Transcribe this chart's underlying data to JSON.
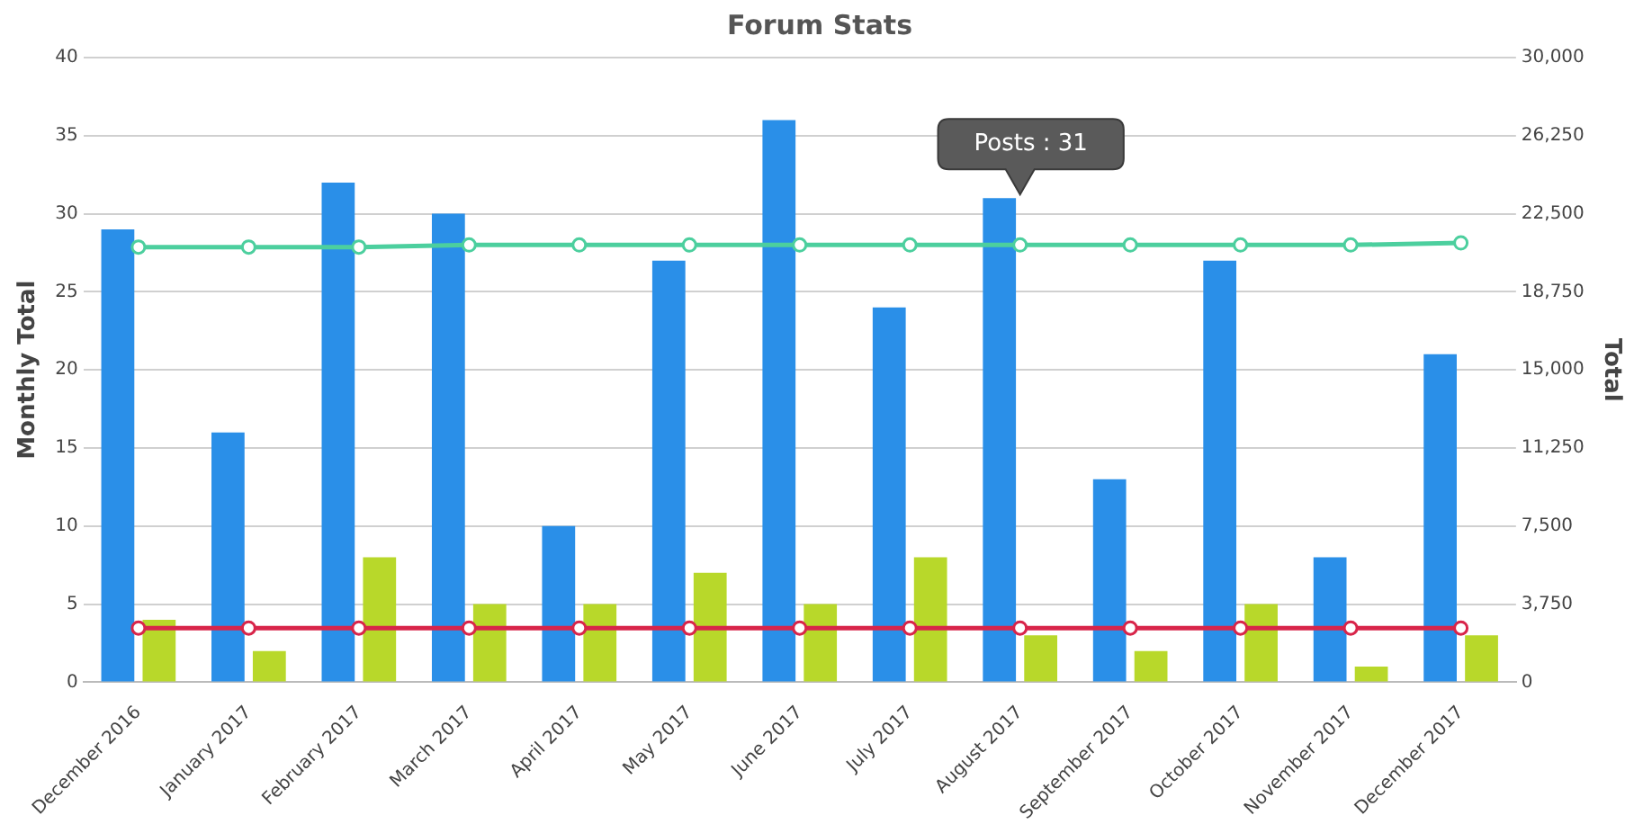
{
  "chart_data": {
    "type": "bar",
    "title": "Forum Stats",
    "ylabel": "Monthly Total",
    "y2label": "Total",
    "categories": [
      "December 2016",
      "January 2017",
      "February 2017",
      "March 2017",
      "April 2017",
      "May 2017",
      "June 2017",
      "July 2017",
      "August 2017",
      "September 2017",
      "October 2017",
      "November 2017",
      "December 2017"
    ],
    "series": [
      {
        "color": "#2a8fe8",
        "values": [
          29,
          16,
          32,
          30,
          10,
          27,
          36,
          24,
          31,
          13,
          27,
          8,
          21
        ]
      },
      {
        "color": "#b8d82a",
        "values": [
          4,
          2,
          8,
          5,
          5,
          7,
          5,
          8,
          3,
          2,
          5,
          1,
          3
        ]
      },
      {
        "type": "line",
        "axis": "y2",
        "color": "#4ccf9e",
        "marker": "circle",
        "values": [
          20900,
          20900,
          20900,
          21000,
          21000,
          21000,
          21000,
          21000,
          21000,
          21000,
          21000,
          21000,
          21100
        ]
      },
      {
        "type": "line",
        "axis": "y2",
        "color": "#d8254a",
        "marker": "circle",
        "values": [
          2600,
          2600,
          2600,
          2600,
          2600,
          2600,
          2600,
          2600,
          2600,
          2600,
          2600,
          2600,
          2600
        ]
      }
    ],
    "ylim": [
      0,
      40
    ],
    "yticks": [
      0,
      5,
      10,
      15,
      20,
      25,
      30,
      35,
      40
    ],
    "y2lim": [
      0,
      30000
    ],
    "y2ticks": [
      0,
      {
        "value": 3750,
        "label": "3,750"
      },
      {
        "value": 7500,
        "label": "7,500"
      },
      {
        "value": 11250,
        "label": "11,250"
      },
      {
        "value": 15000,
        "label": "15,000"
      },
      {
        "value": 18750,
        "label": "18,750"
      },
      {
        "value": 22500,
        "label": "22,500"
      },
      {
        "value": 26250,
        "label": "26,250"
      },
      {
        "value": 30000,
        "label": "30,000"
      }
    ],
    "grid": "y",
    "annotations": [
      {
        "text": "Posts : 31",
        "x": "August 2017",
        "y": 31
      }
    ]
  }
}
